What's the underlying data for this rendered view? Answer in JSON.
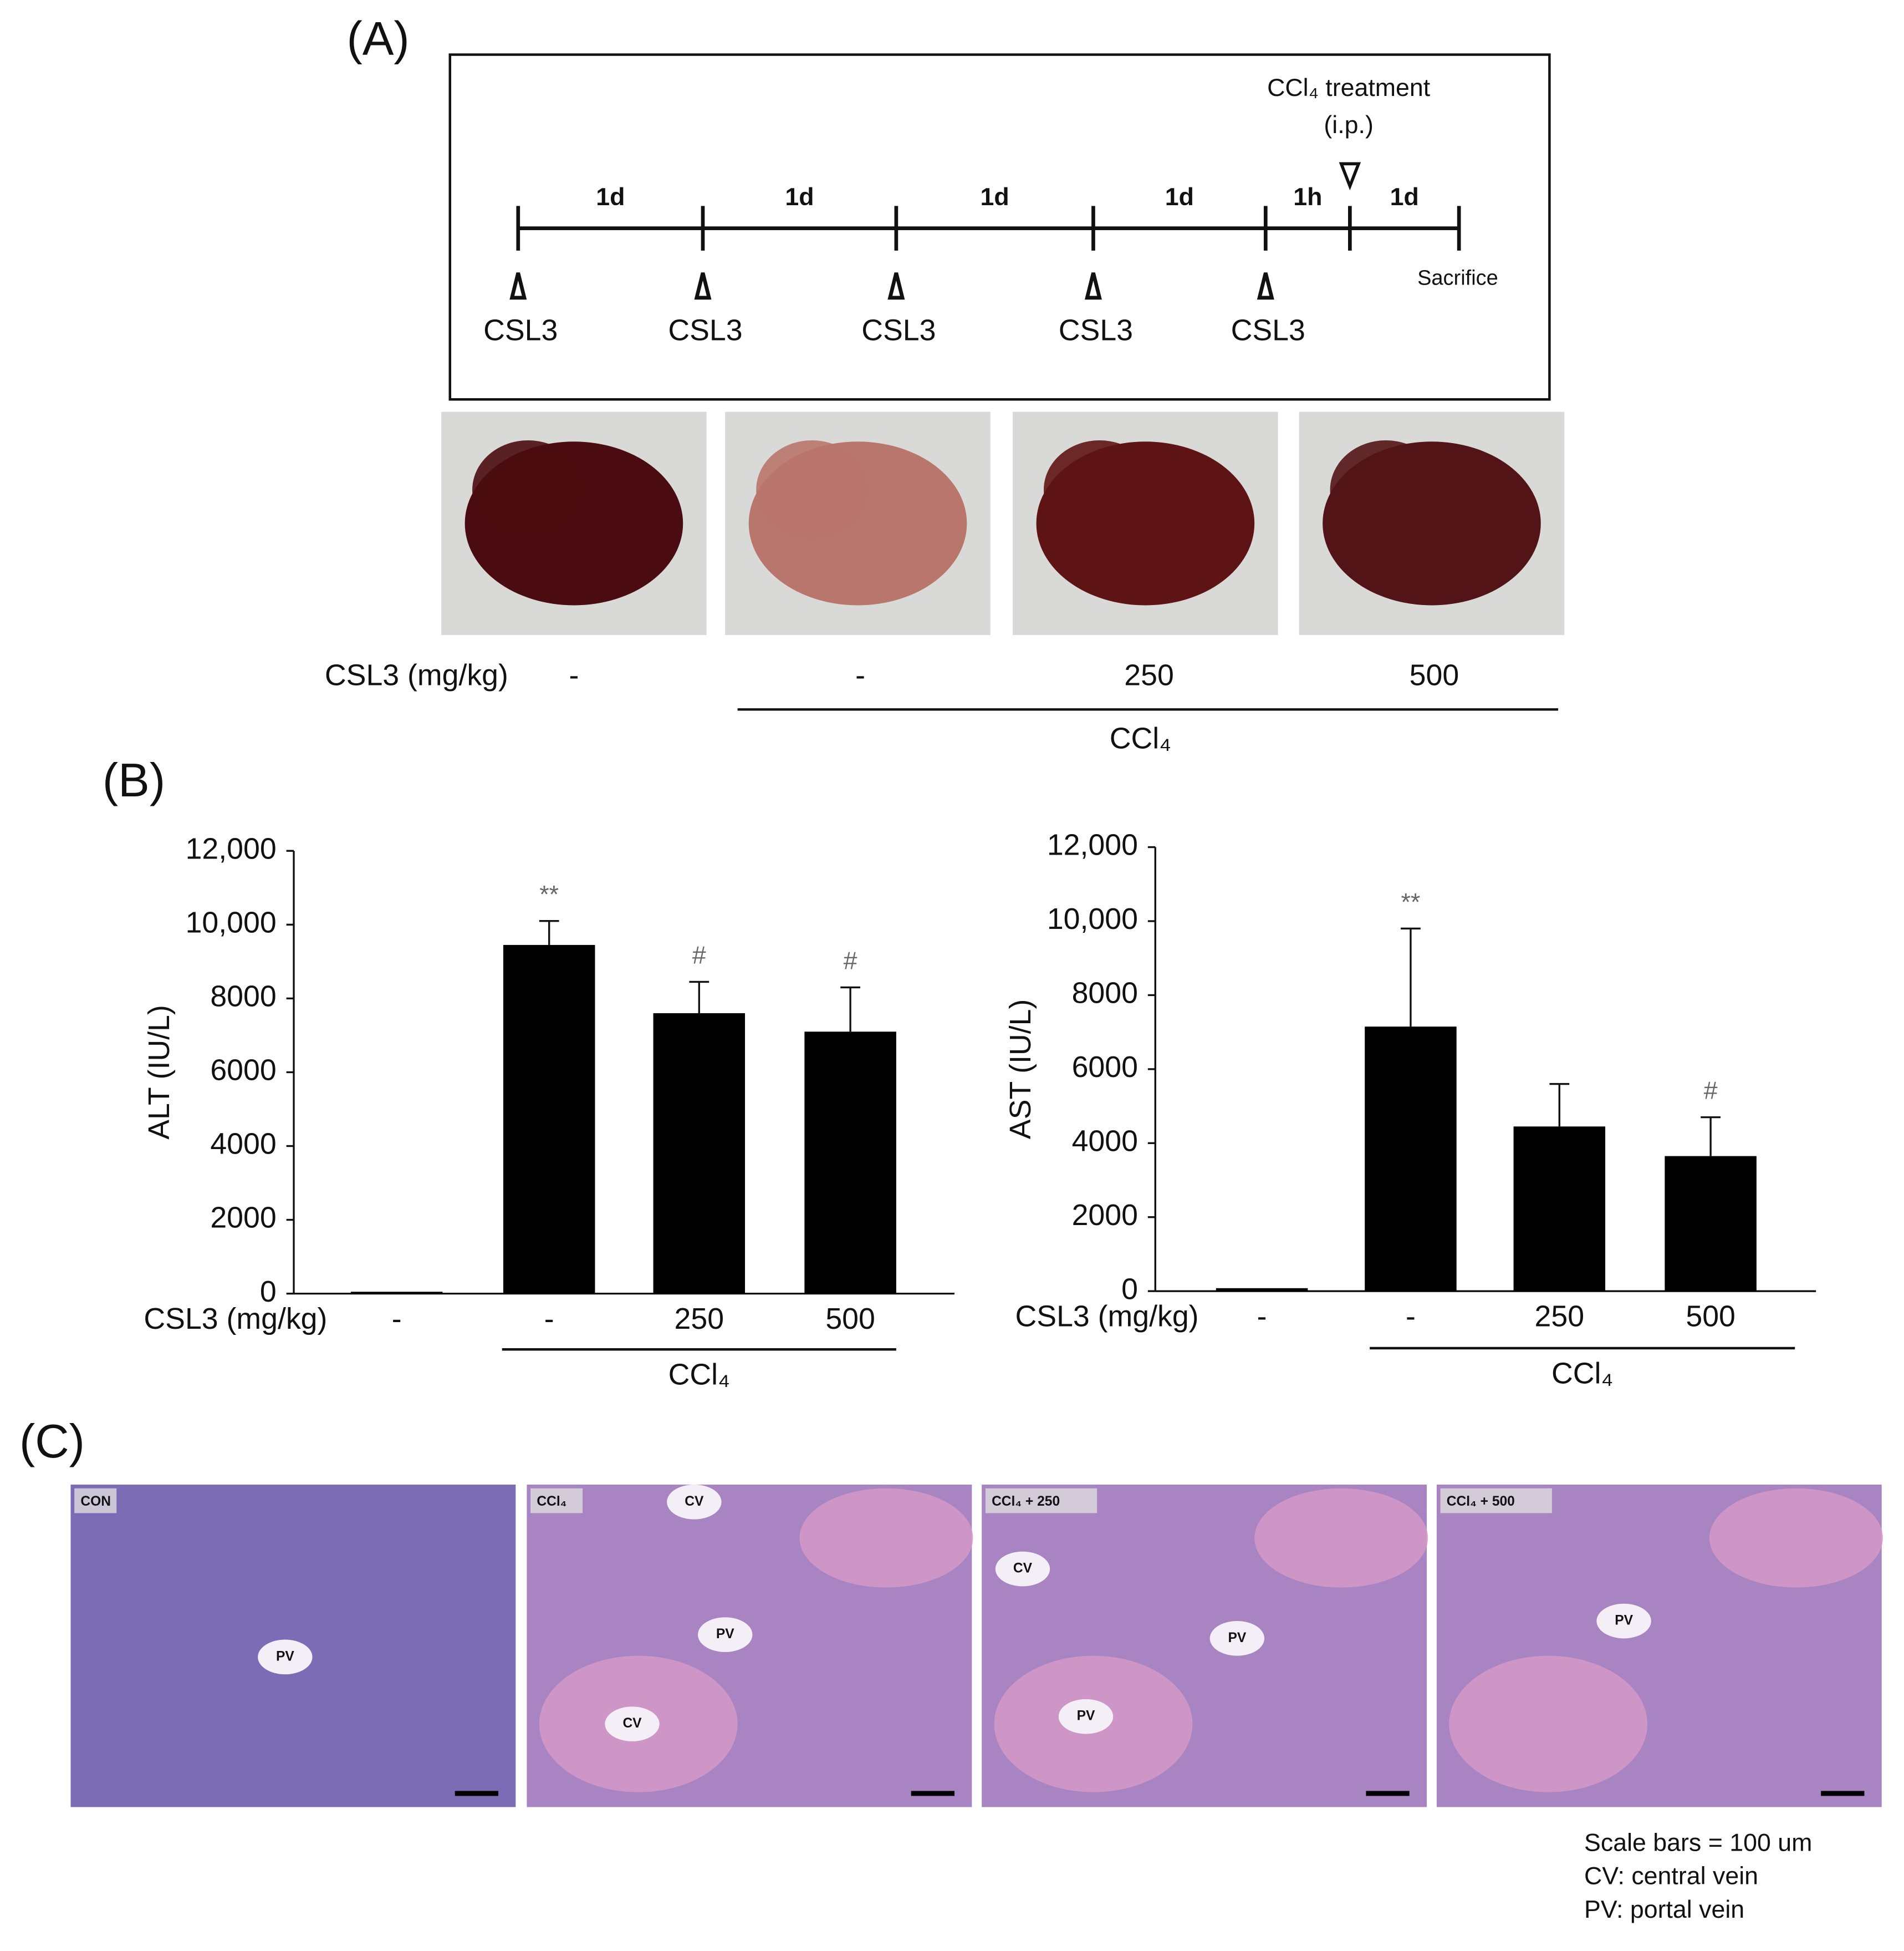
{
  "panel_a": {
    "label": "(A)",
    "treatment": "CCl₄ treatment",
    "route": "(i.p.)",
    "intervals": [
      "1d",
      "1d",
      "1d",
      "1d",
      "1h",
      "1d"
    ],
    "doses": [
      "CSL3",
      "CSL3",
      "CSL3",
      "CSL3",
      "CSL3"
    ],
    "end": "Sacrifice",
    "dose_label": "CSL3 (mg/kg)",
    "groups": [
      "-",
      "-",
      "250",
      "500"
    ],
    "group_treatment": "CCl₄"
  },
  "panel_b": {
    "label": "(B)"
  },
  "chart_data": [
    {
      "type": "bar",
      "y_label": "ALT (IU/L)",
      "x_label": "CSL3 (mg/kg)",
      "categories": [
        "-",
        "-",
        "250",
        "500"
      ],
      "values": [
        50,
        9450,
        7600,
        7100
      ],
      "errors": [
        null,
        650,
        850,
        1200
      ],
      "annotations": [
        null,
        "**",
        "#",
        "#"
      ],
      "group_label": "CCl₄",
      "color": "#000000",
      "ylim": [
        0,
        12000
      ],
      "yticks": [
        0,
        2000,
        4000,
        6000,
        8000,
        {
          "value": 10000,
          "label": "10,000"
        },
        {
          "value": 12000,
          "label": "12,000"
        }
      ]
    },
    {
      "type": "bar",
      "y_label": "AST (IU/L)",
      "x_label": "CSL3 (mg/kg)",
      "categories": [
        "-",
        "-",
        "250",
        "500"
      ],
      "values": [
        80,
        7150,
        4450,
        3650
      ],
      "errors": [
        null,
        2650,
        1150,
        1050
      ],
      "annotations": [
        null,
        "**",
        null,
        "#"
      ],
      "group_label": "CCl₄",
      "color": "#000000",
      "ylim": [
        0,
        12000
      ],
      "yticks": [
        0,
        2000,
        4000,
        6000,
        8000,
        {
          "value": 10000,
          "label": "10,000"
        },
        {
          "value": 12000,
          "label": "12,000"
        }
      ]
    }
  ],
  "panel_c": {
    "label": "(C)",
    "images": [
      {
        "label": "CON",
        "vessels": [
          "PV"
        ]
      },
      {
        "label": "CCl₄",
        "vessels": [
          "CV",
          "PV",
          "CV"
        ]
      },
      {
        "label": "CCl₄ + 250",
        "vessels": [
          "CV",
          "PV",
          "PV"
        ]
      },
      {
        "label": "CCl₄ + 500",
        "vessels": [
          "PV"
        ]
      }
    ],
    "legend": [
      "Scale bars = 100 um",
      "CV: central vein",
      "PV: portal vein"
    ]
  }
}
